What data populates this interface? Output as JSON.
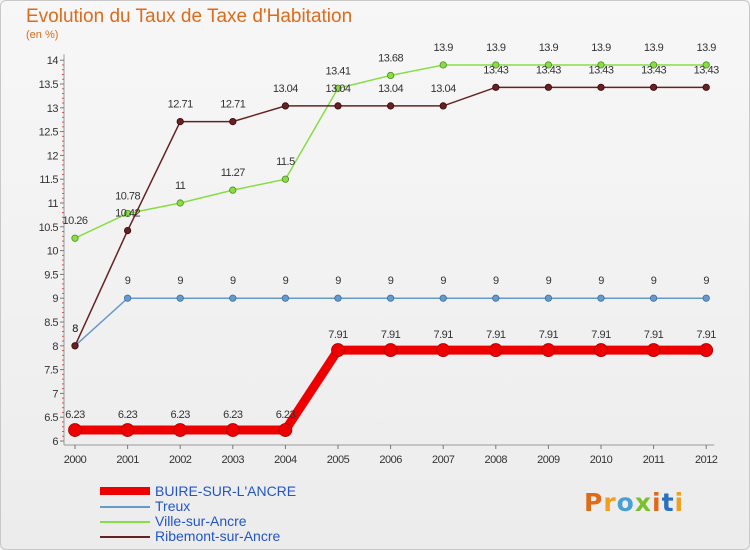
{
  "header": {
    "title": "Evolution du Taux de Taxe d'Habitation",
    "unit": "(en %)"
  },
  "brand": {
    "text": "Proxiti",
    "letter_colors": [
      "#e06a1a",
      "#f0a020",
      "#4aa0d0",
      "#7cc030",
      "#e06a1a",
      "#2a70c0",
      "#f0a020"
    ]
  },
  "chart_data": {
    "type": "line",
    "x": [
      "2000",
      "2001",
      "2002",
      "2003",
      "2004",
      "2005",
      "2006",
      "2007",
      "2008",
      "2009",
      "2010",
      "2011",
      "2012"
    ],
    "ylim": [
      6,
      14
    ],
    "yticks": [
      "6",
      "6.5",
      "7",
      "7.5",
      "8",
      "8.5",
      "9",
      "9.5",
      "10",
      "10.5",
      "11",
      "11.5",
      "12",
      "12.5",
      "13",
      "13.5",
      "14"
    ],
    "grid": false,
    "legend_position": "bottom-left",
    "series": [
      {
        "name": "BUIRE-SUR-L'ANCRE",
        "color": "#ee0000",
        "values": [
          6.23,
          6.23,
          6.23,
          6.23,
          6.23,
          7.91,
          7.91,
          7.91,
          7.91,
          7.91,
          7.91,
          7.91,
          7.91
        ],
        "labels": [
          "6.23",
          "6.23",
          "6.23",
          "6.23",
          "6.23",
          "7.91",
          "7.91",
          "7.91",
          "7.91",
          "7.91",
          "7.91",
          "7.91",
          "7.91"
        ]
      },
      {
        "name": "Treux",
        "color": "#6699cc",
        "values": [
          8,
          9,
          9,
          9,
          9,
          9,
          9,
          9,
          9,
          9,
          9,
          9,
          9
        ],
        "labels": [
          "8",
          "9",
          "9",
          "9",
          "9",
          "9",
          "9",
          "9",
          "9",
          "9",
          "9",
          "9",
          "9"
        ]
      },
      {
        "name": "Ville-sur-Ancre",
        "color": "#88dd44",
        "values": [
          10.26,
          10.78,
          11,
          11.27,
          11.5,
          13.41,
          13.68,
          13.9,
          13.9,
          13.9,
          13.9,
          13.9,
          13.9
        ],
        "labels": [
          "10.26",
          "10.78",
          "11",
          "11.27",
          "11.5",
          "13.41",
          "13.68",
          "13.9",
          "13.9",
          "13.9",
          "13.9",
          "13.9",
          "13.9"
        ]
      },
      {
        "name": "Ribemont-sur-Ancre",
        "color": "#662222",
        "values": [
          8,
          10.42,
          12.71,
          12.71,
          13.04,
          13.04,
          13.04,
          13.04,
          13.43,
          13.43,
          13.43,
          13.43,
          13.43
        ],
        "labels": [
          "8",
          "10.42",
          "12.71",
          "12.71",
          "13.04",
          "13.04",
          "13.04",
          "13.04",
          "13.43",
          "13.43",
          "13.43",
          "13.43",
          "13.43"
        ]
      }
    ]
  }
}
